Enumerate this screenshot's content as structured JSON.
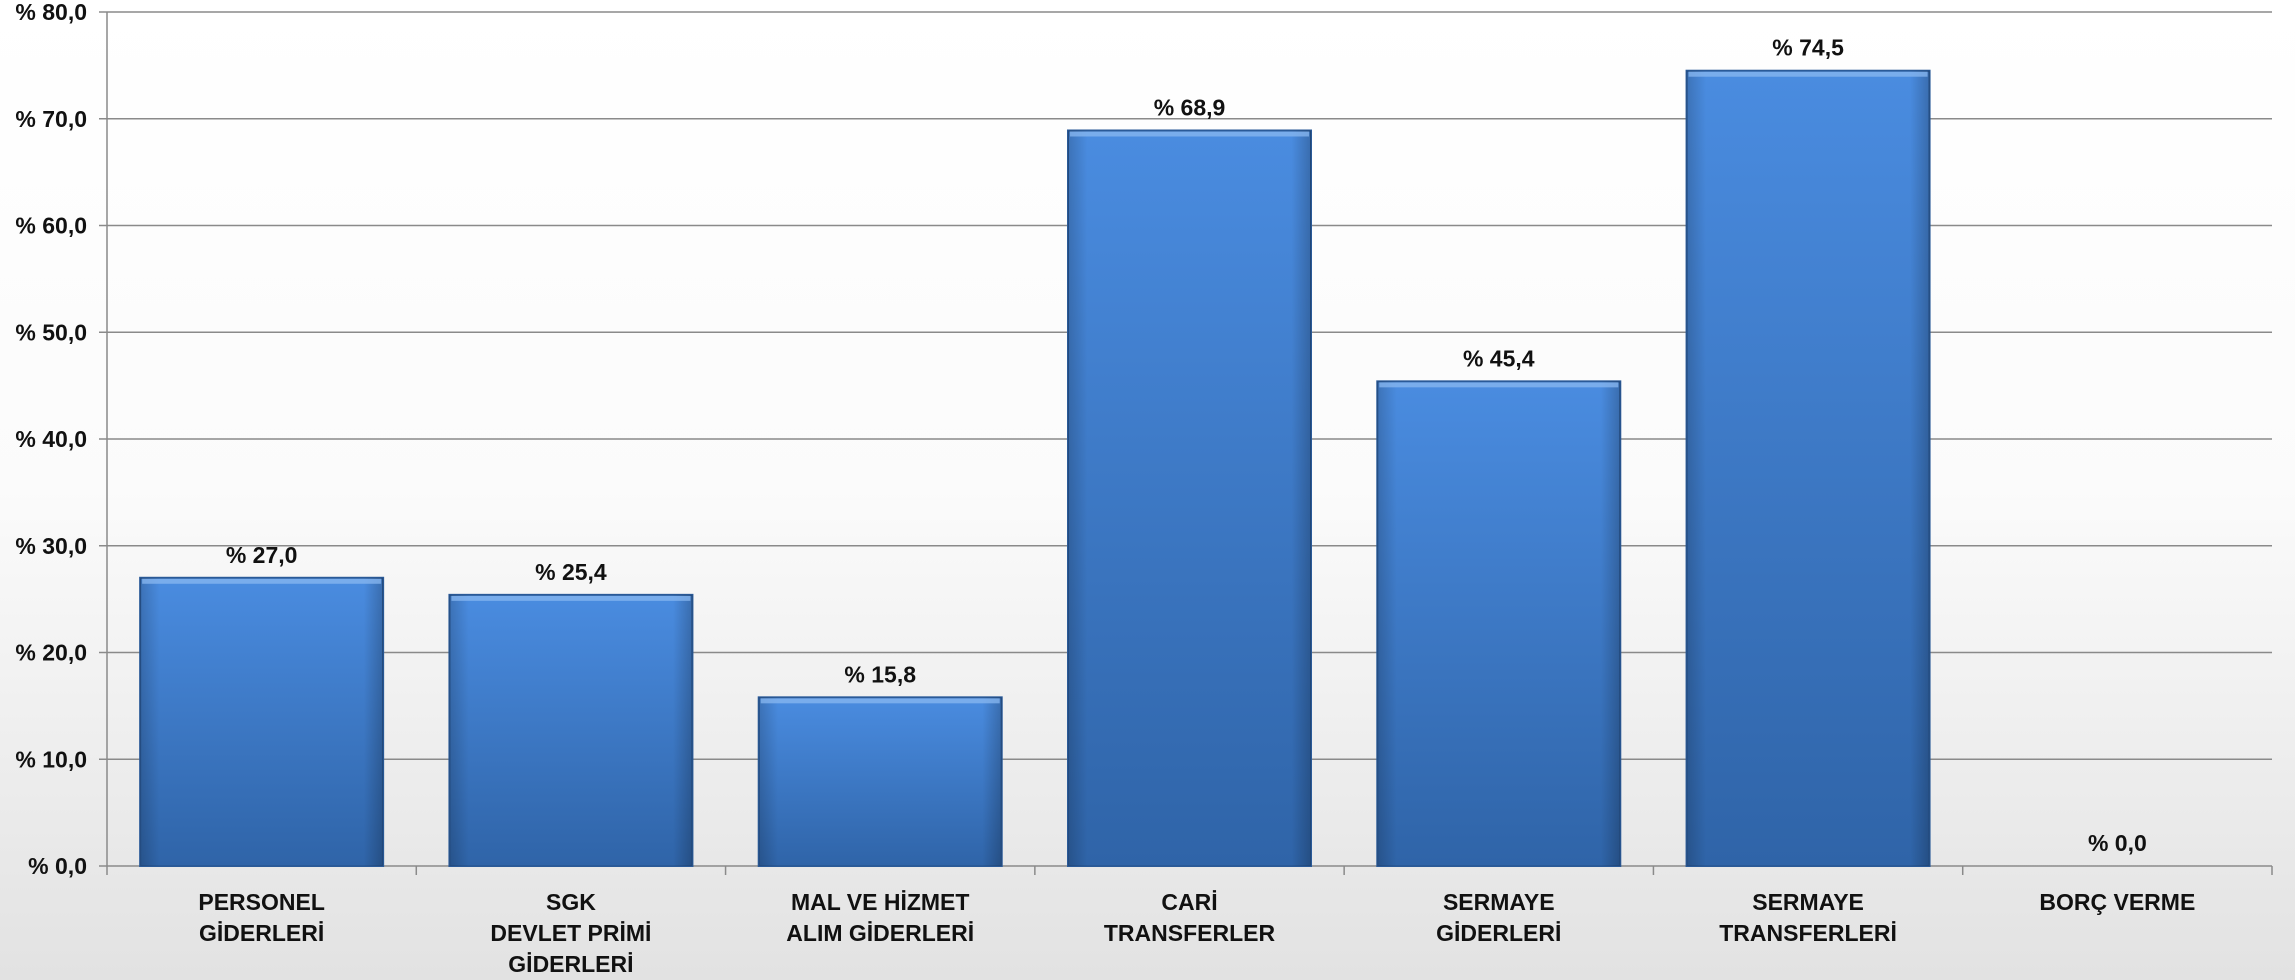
{
  "chart_data": {
    "type": "bar",
    "categories": [
      [
        "PERSONEL",
        "GİDERLERİ"
      ],
      [
        "SGK",
        "DEVLET PRİMİ",
        "GİDERLERİ"
      ],
      [
        "MAL VE HİZMET",
        "ALIM GİDERLERİ"
      ],
      [
        "CARİ",
        "TRANSFERLER"
      ],
      [
        "SERMAYE",
        "GİDERLERİ"
      ],
      [
        "SERMAYE",
        "TRANSFERLERİ"
      ],
      [
        "BORÇ VERME"
      ]
    ],
    "values": [
      27.0,
      25.4,
      15.8,
      68.9,
      45.4,
      74.5,
      0.0
    ],
    "data_labels": [
      "% 27,0",
      "% 25,4",
      "% 15,8",
      "% 68,9",
      "% 45,4",
      "% 74,5",
      "% 0,0"
    ],
    "y_ticks": [
      {
        "value": 0,
        "label": "% 0,0"
      },
      {
        "value": 10,
        "label": "% 10,0"
      },
      {
        "value": 20,
        "label": "% 20,0"
      },
      {
        "value": 30,
        "label": "% 30,0"
      },
      {
        "value": 40,
        "label": "% 40,0"
      },
      {
        "value": 50,
        "label": "% 50,0"
      },
      {
        "value": 60,
        "label": "% 60,0"
      },
      {
        "value": 70,
        "label": "% 70,0"
      },
      {
        "value": 80,
        "label": "% 80,0"
      }
    ],
    "ylim": [
      0,
      80
    ],
    "grid": true,
    "title": "",
    "xlabel": "",
    "ylabel": "",
    "bar_color": "#3a78c9",
    "bar_color_light": "#4a8ce0",
    "bar_color_dark": "#2f64a8",
    "grid_color": "#8a8a8a"
  }
}
